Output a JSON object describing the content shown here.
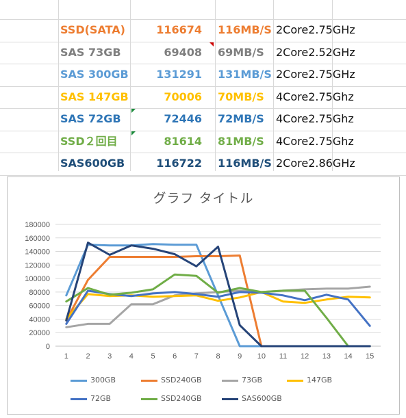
{
  "table": {
    "rows": [
      {
        "name": "SSD(SATA)",
        "score": "116674",
        "speed": "116MB/S",
        "cpu": "2Core2.75GHz",
        "color": "#ed7d31"
      },
      {
        "name": "SAS 73GB",
        "score": "69408",
        "speed": "69MB/S",
        "cpu": "2Core2.52GHz",
        "color": "#7f7f7f"
      },
      {
        "name": "SAS 300GB",
        "score": "131291",
        "speed": "131MB/S",
        "cpu": "2Core2.75GHz",
        "color": "#5b9bd5"
      },
      {
        "name": "SAS 147GB",
        "score": "70006",
        "speed": "70MB/S",
        "cpu": "4Core2.75Ghz",
        "color": "#ffc000"
      },
      {
        "name": "SAS 72GB",
        "score": "72446",
        "speed": "72MB/S",
        "cpu": "4Core2.75Ghz",
        "color": "#2e75b6"
      },
      {
        "name": "SSD２回目",
        "score": "81614",
        "speed": "81MB/S",
        "cpu": "4Core2.75Ghz",
        "color": "#70ad47"
      },
      {
        "name": "SAS600GB",
        "score": "116722",
        "speed": "116MB/S",
        "cpu": "2Core2.86GHz",
        "color": "#1f4e79"
      }
    ]
  },
  "chart_data": {
    "type": "line",
    "title": "グラフ タイトル",
    "x": [
      1,
      2,
      3,
      4,
      5,
      6,
      7,
      8,
      9,
      10,
      11,
      12,
      13,
      14,
      15
    ],
    "ylim": [
      0,
      180000
    ],
    "yticks": [
      "0",
      "20000",
      "40000",
      "60000",
      "80000",
      "100000",
      "120000",
      "140000",
      "160000",
      "180000"
    ],
    "grid": true,
    "legend_position": "bottom",
    "series": [
      {
        "name": "300GB",
        "color": "#5b9bd5",
        "values": [
          75000,
          150000,
          149000,
          149000,
          151000,
          150000,
          150000,
          75000,
          0,
          0,
          0,
          0,
          0,
          0,
          0
        ]
      },
      {
        "name": "SSD240GB",
        "color": "#ed7d31",
        "values": [
          38000,
          98000,
          132000,
          132000,
          132000,
          132000,
          133000,
          133000,
          134000,
          0,
          0,
          0,
          0,
          0,
          0
        ]
      },
      {
        "name": "73GB",
        "color": "#a5a5a5",
        "values": [
          28000,
          33000,
          33000,
          62000,
          62000,
          75000,
          78000,
          80000,
          82000,
          80000,
          82000,
          84000,
          85000,
          85000,
          88000
        ]
      },
      {
        "name": "147GB",
        "color": "#ffc000",
        "values": [
          40000,
          77000,
          74000,
          75000,
          73000,
          74000,
          75000,
          67000,
          72000,
          80000,
          66000,
          64000,
          69000,
          73000,
          72000
        ]
      },
      {
        "name": "72GB",
        "color": "#4472c4",
        "values": [
          33000,
          82000,
          77000,
          74000,
          78000,
          80000,
          77000,
          73000,
          80000,
          79000,
          75000,
          68000,
          76000,
          69000,
          30000
        ]
      },
      {
        "name": "SSD240GB",
        "color": "#70ad47",
        "values": [
          66000,
          86000,
          76000,
          79000,
          84000,
          106000,
          104000,
          79000,
          86000,
          80000,
          82000,
          82000,
          42000,
          0,
          0
        ]
      },
      {
        "name": "SAS600GB",
        "color": "#264478",
        "values": [
          38000,
          153000,
          135000,
          149000,
          144000,
          136000,
          118000,
          147000,
          31000,
          0,
          0,
          0,
          0,
          0,
          0
        ]
      }
    ]
  }
}
